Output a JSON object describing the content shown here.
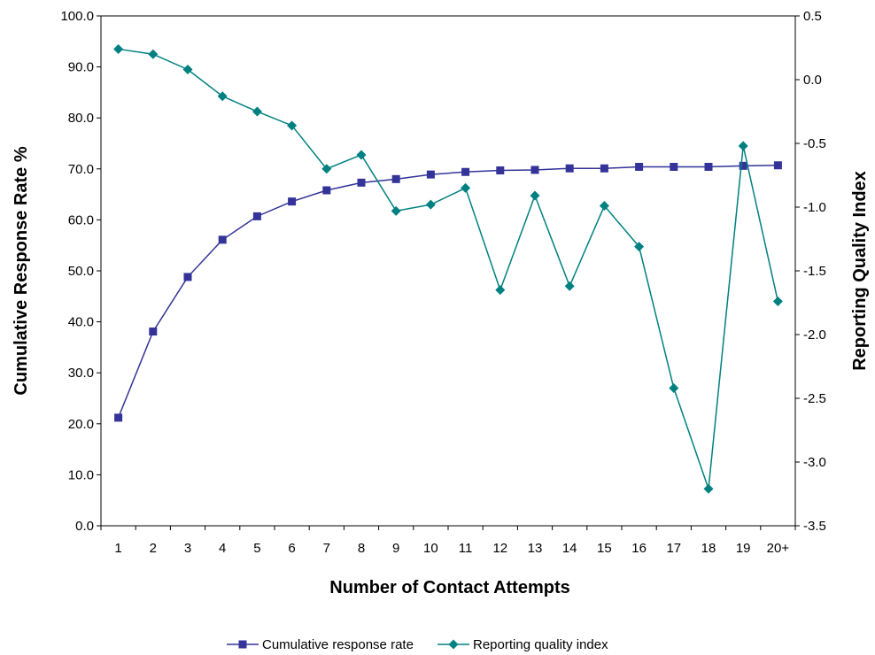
{
  "chart_data": {
    "type": "line",
    "title": "",
    "xlabel": "Number of Contact Attempts",
    "ylabel": "Cumulative Response Rate %",
    "y2label": "Reporting Quality Index",
    "categories": [
      "1",
      "2",
      "3",
      "4",
      "5",
      "6",
      "7",
      "8",
      "9",
      "10",
      "11",
      "12",
      "13",
      "14",
      "15",
      "16",
      "17",
      "18",
      "19",
      "20+"
    ],
    "ylim": [
      0,
      100
    ],
    "y_ticks": [
      "0.0",
      "10.0",
      "20.0",
      "30.0",
      "40.0",
      "50.0",
      "60.0",
      "70.0",
      "80.0",
      "90.0",
      "100.0"
    ],
    "y2lim": [
      -3.5,
      0.5
    ],
    "y2_ticks": [
      "-3.5",
      "-3.0",
      "-2.5",
      "-2.0",
      "-1.5",
      "-1.0",
      "-0.5",
      "0.0",
      "0.5"
    ],
    "grid": false,
    "legend_position": "bottom",
    "series": [
      {
        "name": "Cumulative response rate",
        "axis": "left",
        "color": "#333399",
        "marker": "square",
        "values": [
          21.2,
          38.1,
          48.8,
          56.1,
          60.7,
          63.6,
          65.8,
          67.3,
          68.0,
          68.9,
          69.4,
          69.7,
          69.8,
          70.1,
          70.1,
          70.4,
          70.4,
          70.4,
          70.6,
          70.7
        ]
      },
      {
        "name": "Reporting quality index",
        "axis": "right",
        "color": "#008080",
        "marker": "diamond",
        "values": [
          0.24,
          0.2,
          0.08,
          -0.13,
          -0.25,
          -0.36,
          -0.7,
          -0.59,
          -1.03,
          -0.98,
          -0.85,
          -1.65,
          -0.91,
          -1.62,
          -0.99,
          -1.31,
          -2.42,
          -3.21,
          -0.52,
          -1.74
        ]
      }
    ]
  }
}
